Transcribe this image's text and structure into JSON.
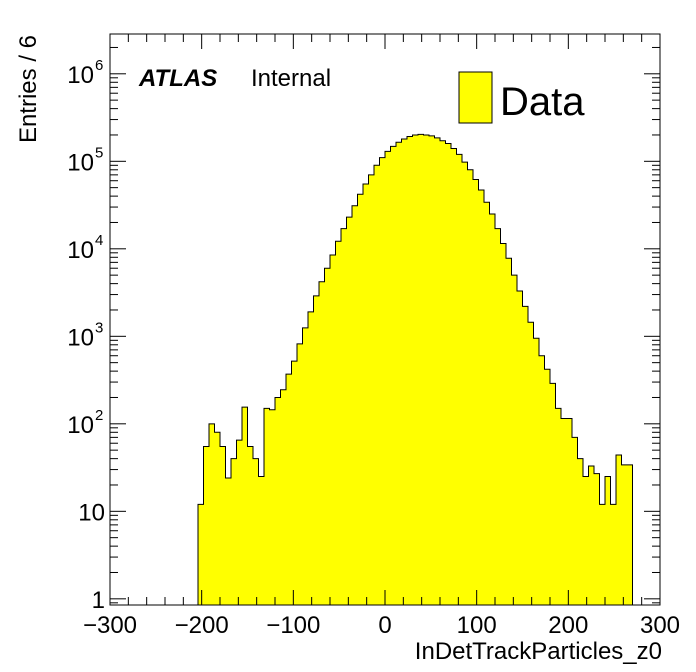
{
  "chart_data": {
    "type": "bar",
    "style": "histogram",
    "xlabel": "InDetTrackParticles_z0",
    "ylabel": "Entries / 6",
    "xlim": [
      -300,
      300
    ],
    "ylim": [
      0.85,
      2850000
    ],
    "yscale": "log",
    "bin_width": 6,
    "x_ticks": [
      -300,
      -200,
      -100,
      0,
      100,
      200,
      300
    ],
    "x_tick_labels": [
      "−300",
      "−200",
      "−100",
      "0",
      "100",
      "200",
      "300"
    ],
    "y_ticks": [
      {
        "value": 1,
        "base": "1",
        "exp": ""
      },
      {
        "value": 10,
        "base": "10",
        "exp": ""
      },
      {
        "value": 100,
        "base": "10",
        "exp": "2"
      },
      {
        "value": 1000,
        "base": "10",
        "exp": "3"
      },
      {
        "value": 10000,
        "base": "10",
        "exp": "4"
      },
      {
        "value": 100000,
        "base": "10",
        "exp": "5"
      },
      {
        "value": 1000000,
        "base": "10",
        "exp": "6"
      }
    ],
    "atlas_label": "ATLAS",
    "atlas_status": "Internal",
    "legend_placement": "top-right",
    "series": [
      {
        "name": "Data",
        "fill_color": "#ffff00",
        "line_color": "#000000",
        "bin_edges_start": -204,
        "values": [
          12,
          55,
          100,
          80,
          55,
          24,
          40,
          65,
          155,
          55,
          40,
          25,
          150,
          145,
          200,
          245,
          370,
          520,
          820,
          1250,
          1900,
          2900,
          4200,
          6000,
          8500,
          12200,
          17000,
          23000,
          31000,
          42000,
          55000,
          70000,
          90000,
          110000,
          130000,
          148000,
          165000,
          180000,
          192000,
          200000,
          203000,
          200000,
          195000,
          185000,
          172000,
          160000,
          140000,
          120000,
          98000,
          80000,
          62000,
          47000,
          34000,
          25000,
          17000,
          11500,
          7800,
          5000,
          3300,
          2200,
          1450,
          950,
          600,
          420,
          290,
          150,
          115,
          115,
          70,
          40,
          25,
          33,
          27,
          12,
          25,
          12,
          44,
          34,
          34
        ]
      }
    ]
  }
}
